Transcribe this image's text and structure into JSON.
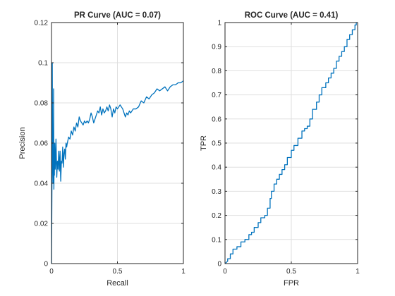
{
  "chart_data": [
    {
      "type": "line",
      "title": "PR Curve (AUC = 0.07)",
      "xlabel": "Recall",
      "ylabel": "Precision",
      "xlim": [
        0,
        1
      ],
      "ylim": [
        0,
        0.12
      ],
      "xticks": [
        0,
        0.5,
        1
      ],
      "xtick_labels": [
        "0",
        "0.5",
        "1"
      ],
      "yticks": [
        0,
        0.02,
        0.04,
        0.06,
        0.08,
        0.1,
        0.12
      ],
      "ytick_labels": [
        "0",
        "0.02",
        "0.04",
        "0.06",
        "0.08",
        "0.1",
        "0.12"
      ],
      "grid": true,
      "color": "#0072bd",
      "series": [
        {
          "x": [
            0,
            0.002,
            0.004,
            0.006,
            0.008,
            0.01,
            0.012,
            0.014,
            0.016,
            0.018,
            0.02,
            0.022,
            0.025,
            0.028,
            0.031,
            0.034,
            0.037,
            0.04,
            0.045,
            0.05,
            0.055,
            0.06,
            0.065,
            0.07,
            0.075,
            0.08,
            0.085,
            0.09,
            0.095,
            0.1,
            0.105,
            0.11,
            0.115,
            0.12,
            0.13,
            0.14,
            0.15,
            0.16,
            0.17,
            0.18,
            0.19,
            0.2,
            0.21,
            0.22,
            0.23,
            0.24,
            0.25,
            0.26,
            0.27,
            0.28,
            0.29,
            0.3,
            0.31,
            0.32,
            0.33,
            0.34,
            0.35,
            0.36,
            0.37,
            0.38,
            0.39,
            0.4,
            0.41,
            0.42,
            0.43,
            0.44,
            0.45,
            0.46,
            0.47,
            0.48,
            0.49,
            0.5,
            0.51,
            0.52,
            0.53,
            0.54,
            0.55,
            0.56,
            0.57,
            0.58,
            0.59,
            0.6,
            0.62,
            0.64,
            0.66,
            0.68,
            0.7,
            0.72,
            0.74,
            0.76,
            0.78,
            0.8,
            0.82,
            0.84,
            0.86,
            0.88,
            0.9,
            0.92,
            0.94,
            0.96,
            0.98,
            1.0
          ],
          "y": [
            0,
            0.02,
            0.045,
            0.1,
            0.06,
            0.05,
            0.04,
            0.055,
            0.087,
            0.037,
            0.05,
            0.044,
            0.06,
            0.047,
            0.05,
            0.062,
            0.052,
            0.043,
            0.051,
            0.047,
            0.056,
            0.046,
            0.056,
            0.041,
            0.051,
            0.05,
            0.058,
            0.048,
            0.055,
            0.057,
            0.052,
            0.06,
            0.058,
            0.06,
            0.063,
            0.062,
            0.066,
            0.064,
            0.068,
            0.066,
            0.07,
            0.068,
            0.073,
            0.071,
            0.07,
            0.069,
            0.071,
            0.07,
            0.071,
            0.07,
            0.072,
            0.075,
            0.073,
            0.07,
            0.072,
            0.074,
            0.076,
            0.075,
            0.078,
            0.074,
            0.077,
            0.075,
            0.076,
            0.078,
            0.076,
            0.079,
            0.077,
            0.073,
            0.077,
            0.075,
            0.078,
            0.077,
            0.078,
            0.079,
            0.078,
            0.077,
            0.075,
            0.073,
            0.075,
            0.074,
            0.076,
            0.075,
            0.077,
            0.077,
            0.078,
            0.081,
            0.08,
            0.083,
            0.082,
            0.084,
            0.085,
            0.087,
            0.086,
            0.087,
            0.088,
            0.086,
            0.088,
            0.089,
            0.089,
            0.09,
            0.09,
            0.091
          ]
        }
      ]
    },
    {
      "type": "line",
      "title": "ROC Curve (AUC = 0.41)",
      "xlabel": "FPR",
      "ylabel": "TPR",
      "xlim": [
        0,
        1
      ],
      "ylim": [
        0,
        1
      ],
      "xticks": [
        0,
        0.5,
        1
      ],
      "xtick_labels": [
        "0",
        "0.5",
        "1"
      ],
      "yticks": [
        0,
        0.1,
        0.2,
        0.3,
        0.4,
        0.5,
        0.6,
        0.7,
        0.8,
        0.9,
        1
      ],
      "ytick_labels": [
        "0",
        "0.1",
        "0.2",
        "0.3",
        "0.4",
        "0.5",
        "0.6",
        "0.7",
        "0.8",
        "0.9",
        "1"
      ],
      "grid": true,
      "color": "#0072bd",
      "series": [
        {
          "x": [
            0,
            0.02,
            0.02,
            0.04,
            0.04,
            0.06,
            0.06,
            0.09,
            0.09,
            0.12,
            0.12,
            0.15,
            0.15,
            0.18,
            0.18,
            0.2,
            0.2,
            0.22,
            0.22,
            0.25,
            0.25,
            0.27,
            0.27,
            0.3,
            0.3,
            0.32,
            0.32,
            0.34,
            0.34,
            0.35,
            0.35,
            0.37,
            0.37,
            0.39,
            0.39,
            0.41,
            0.41,
            0.43,
            0.43,
            0.45,
            0.45,
            0.47,
            0.47,
            0.5,
            0.5,
            0.52,
            0.52,
            0.55,
            0.55,
            0.58,
            0.58,
            0.6,
            0.6,
            0.62,
            0.62,
            0.64,
            0.64,
            0.66,
            0.66,
            0.69,
            0.69,
            0.71,
            0.71,
            0.73,
            0.73,
            0.76,
            0.76,
            0.78,
            0.78,
            0.8,
            0.8,
            0.82,
            0.82,
            0.84,
            0.84,
            0.86,
            0.86,
            0.88,
            0.88,
            0.9,
            0.9,
            0.92,
            0.92,
            0.94,
            0.94,
            0.96,
            0.96,
            0.98,
            0.98,
            0.99,
            0.99,
            1.0
          ],
          "y": [
            0,
            0.01,
            0.02,
            0.02,
            0.04,
            0.04,
            0.06,
            0.06,
            0.07,
            0.07,
            0.09,
            0.09,
            0.1,
            0.1,
            0.12,
            0.12,
            0.13,
            0.13,
            0.15,
            0.15,
            0.17,
            0.17,
            0.19,
            0.19,
            0.2,
            0.2,
            0.23,
            0.23,
            0.27,
            0.27,
            0.3,
            0.3,
            0.33,
            0.33,
            0.35,
            0.35,
            0.37,
            0.37,
            0.39,
            0.39,
            0.41,
            0.41,
            0.44,
            0.44,
            0.47,
            0.47,
            0.49,
            0.49,
            0.52,
            0.52,
            0.55,
            0.55,
            0.56,
            0.56,
            0.57,
            0.57,
            0.6,
            0.6,
            0.64,
            0.64,
            0.67,
            0.67,
            0.7,
            0.7,
            0.73,
            0.73,
            0.75,
            0.75,
            0.77,
            0.77,
            0.79,
            0.79,
            0.81,
            0.81,
            0.84,
            0.84,
            0.86,
            0.86,
            0.88,
            0.88,
            0.9,
            0.9,
            0.93,
            0.93,
            0.95,
            0.95,
            0.97,
            0.97,
            0.99,
            0.99,
            1.0,
            1.0
          ]
        }
      ]
    }
  ]
}
